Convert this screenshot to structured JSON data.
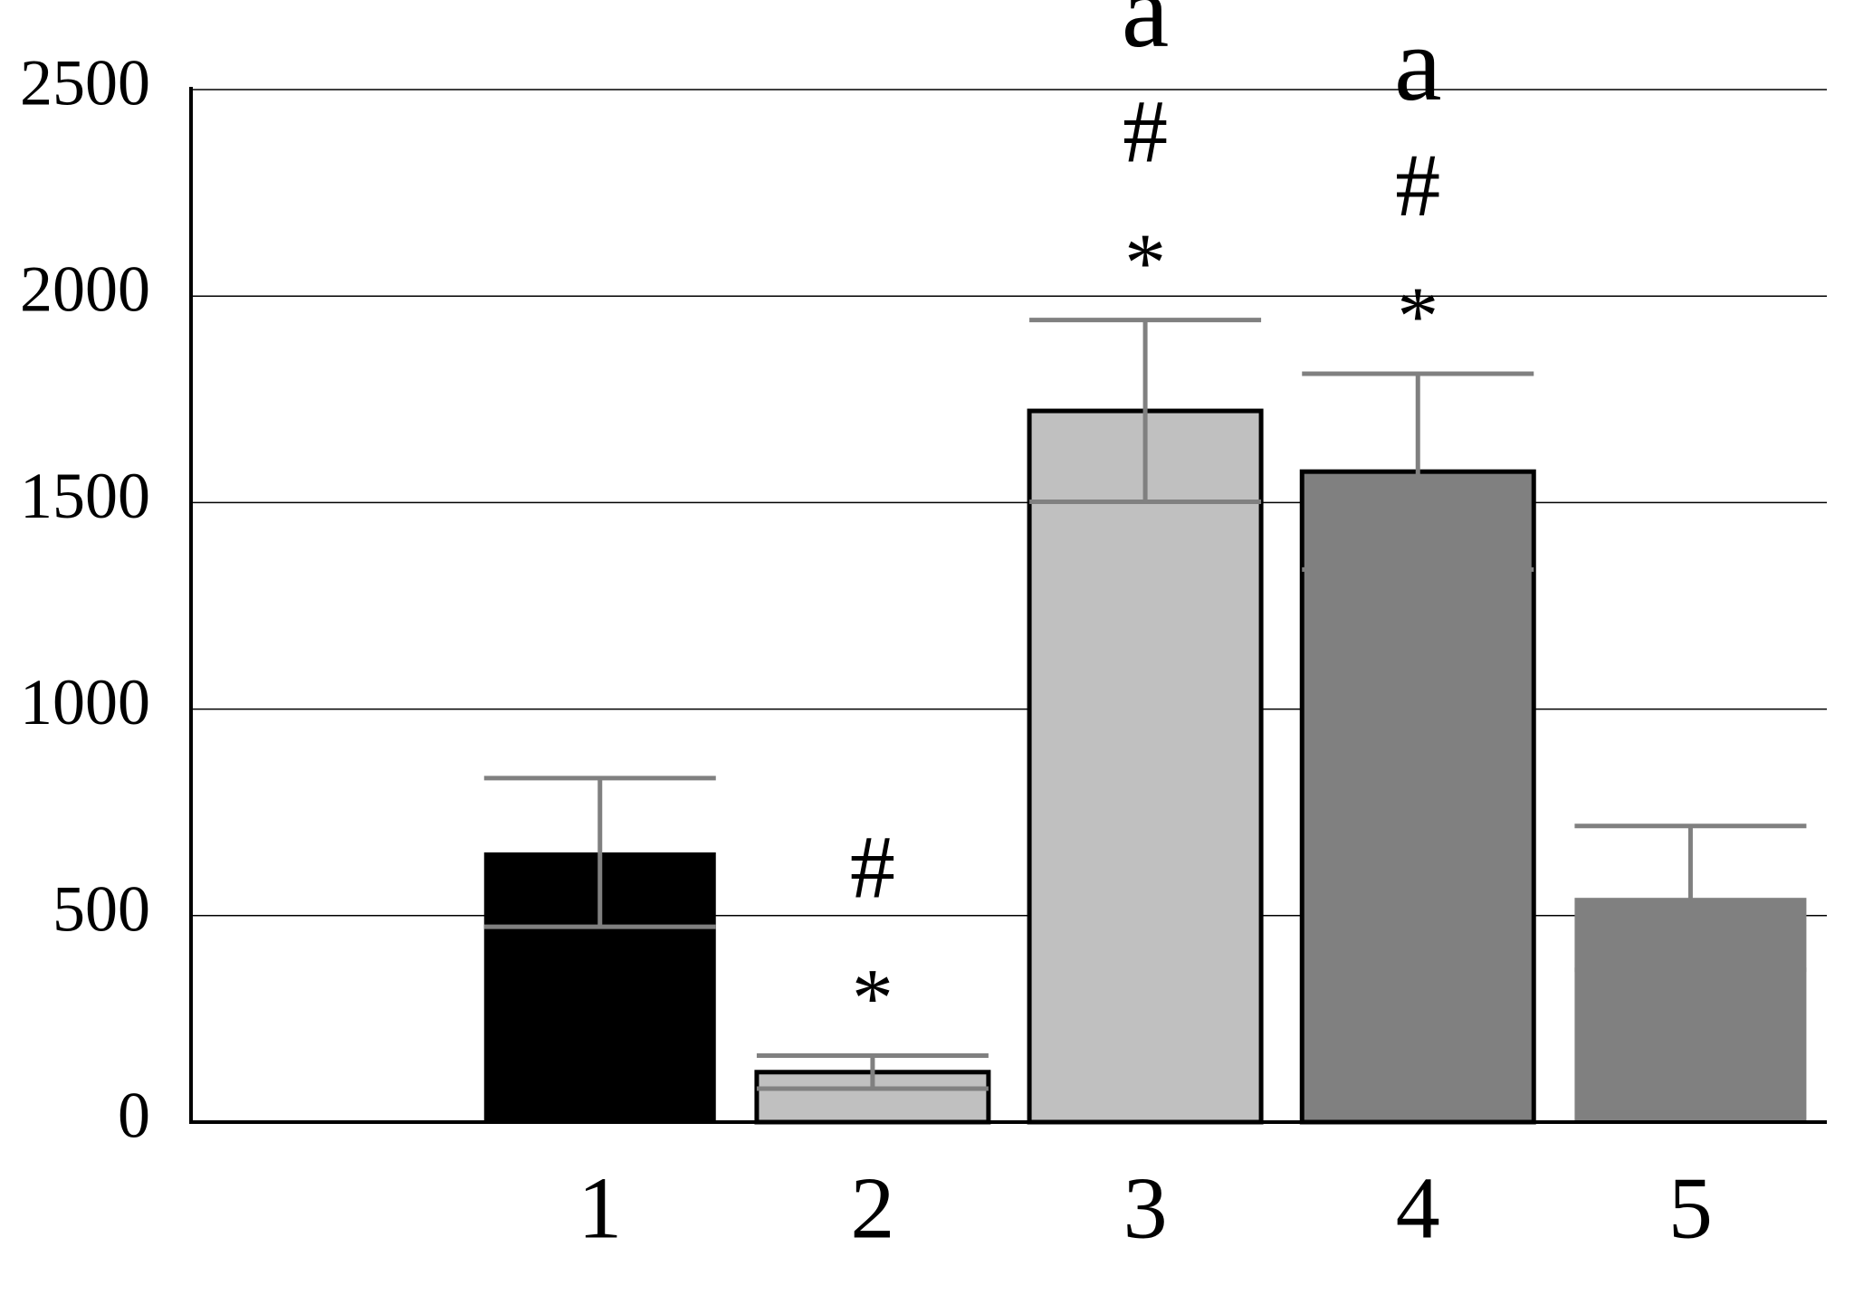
{
  "chart_data": {
    "type": "bar",
    "categories": [
      null,
      "1",
      "2",
      "3",
      "4",
      "5"
    ],
    "values": [
      null,
      653,
      121,
      1722,
      1575,
      543
    ],
    "errors": [
      null,
      180,
      40,
      220,
      237,
      174
    ],
    "colors": [
      null,
      "#000000",
      "#c0c0c0",
      "#c0c0c0",
      "#808080",
      "#808080"
    ],
    "outline": [
      null,
      false,
      true,
      true,
      true,
      false
    ],
    "error_color": "#808080",
    "annotations": [
      {
        "category": "2",
        "lines": [
          "#",
          "*"
        ]
      },
      {
        "category": "3",
        "lines": [
          "a",
          "#",
          "*"
        ]
      },
      {
        "category": "4",
        "lines": [
          "a",
          "#",
          "*"
        ]
      }
    ],
    "ylim": [
      0,
      2500
    ],
    "yticks": [
      0,
      500,
      1000,
      1500,
      2000,
      2500
    ],
    "grid": true
  }
}
